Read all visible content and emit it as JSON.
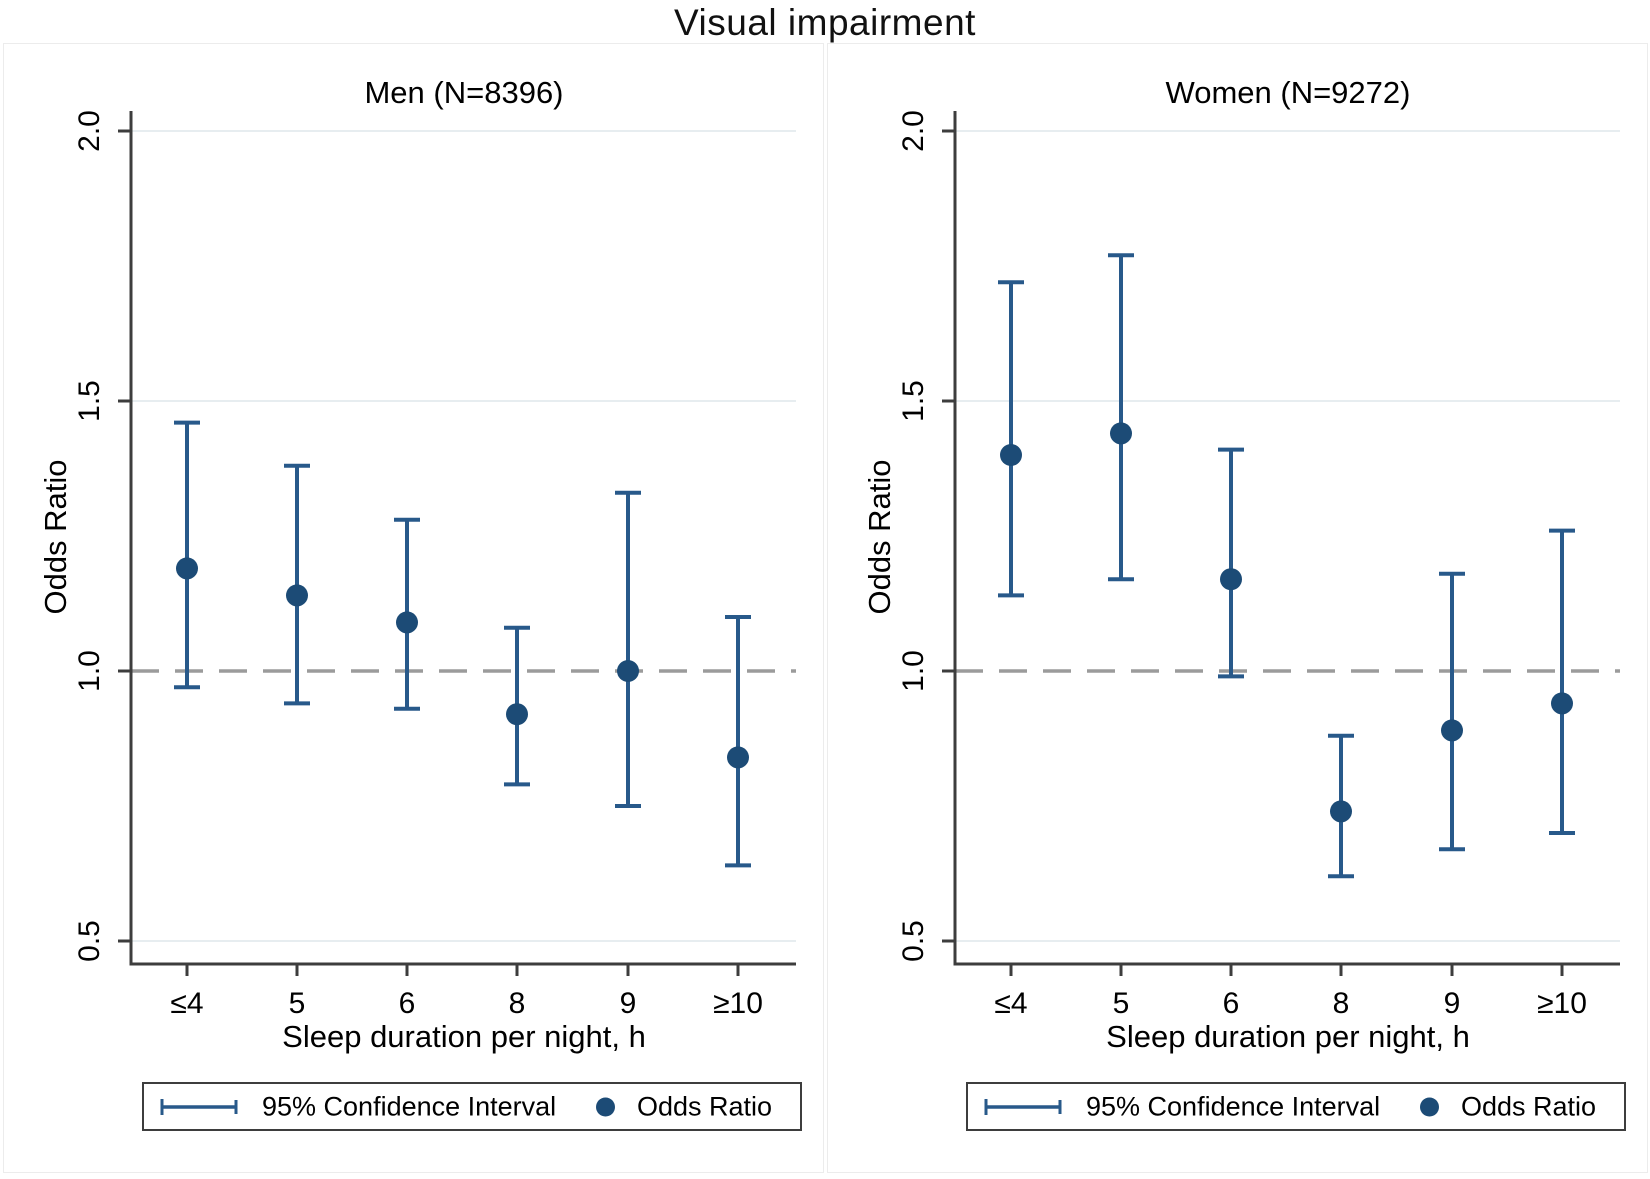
{
  "title": "Visual impairment",
  "ylabel": "Odds Ratio",
  "xlabel": "Sleep duration per night, h",
  "legend": {
    "ci_label": "95% Confidence Interval",
    "or_label": "Odds Ratio"
  },
  "colors": {
    "marker": "#1c4b76",
    "ci_line": "#28598a",
    "dashed_ref": "#9b9b9b",
    "grid": "#e7edf0",
    "axis": "#3d3d3d",
    "text": "#000000"
  },
  "axis": {
    "yticks": [
      0.5,
      1.0,
      1.5,
      2.0
    ],
    "ytick_labels": [
      "0.5",
      "1.0",
      "1.5",
      "2.0"
    ],
    "grid_values": [
      0.5,
      1.5,
      2.0
    ],
    "ref_line": 1.0,
    "ylim": [
      0.45,
      2.05
    ],
    "xtick_labels": [
      "≤4",
      "5",
      "6",
      "8",
      "9",
      "≥10"
    ]
  },
  "chart_data": [
    {
      "type": "errorbar",
      "title": "Men (N=8396)",
      "xlabel": "Sleep duration per night, h",
      "ylabel": "Odds Ratio",
      "categories": [
        "≤4",
        "5",
        "6",
        "8",
        "9",
        "≥10"
      ],
      "series": [
        {
          "name": "Odds Ratio",
          "values": [
            1.19,
            1.14,
            1.09,
            0.92,
            1.0,
            0.84
          ]
        },
        {
          "name": "95% CI lower",
          "values": [
            0.97,
            0.94,
            0.93,
            0.79,
            0.75,
            0.64
          ]
        },
        {
          "name": "95% CI upper",
          "values": [
            1.46,
            1.38,
            1.28,
            1.08,
            1.33,
            1.1
          ]
        }
      ],
      "ylim": [
        0.45,
        2.05
      ],
      "ref_line": 1.0,
      "grid": true,
      "legend_position": "bottom"
    },
    {
      "type": "errorbar",
      "title": "Women (N=9272)",
      "xlabel": "Sleep duration per night, h",
      "ylabel": "Odds Ratio",
      "categories": [
        "≤4",
        "5",
        "6",
        "8",
        "9",
        "≥10"
      ],
      "series": [
        {
          "name": "Odds Ratio",
          "values": [
            1.4,
            1.44,
            1.17,
            0.74,
            0.89,
            0.94
          ]
        },
        {
          "name": "95% CI lower",
          "values": [
            1.14,
            1.17,
            0.99,
            0.62,
            0.67,
            0.7
          ]
        },
        {
          "name": "95% CI upper",
          "values": [
            1.72,
            1.77,
            1.41,
            0.88,
            1.18,
            1.26
          ]
        }
      ],
      "ylim": [
        0.45,
        2.05
      ],
      "ref_line": 1.0,
      "grid": true,
      "legend_position": "bottom"
    }
  ]
}
